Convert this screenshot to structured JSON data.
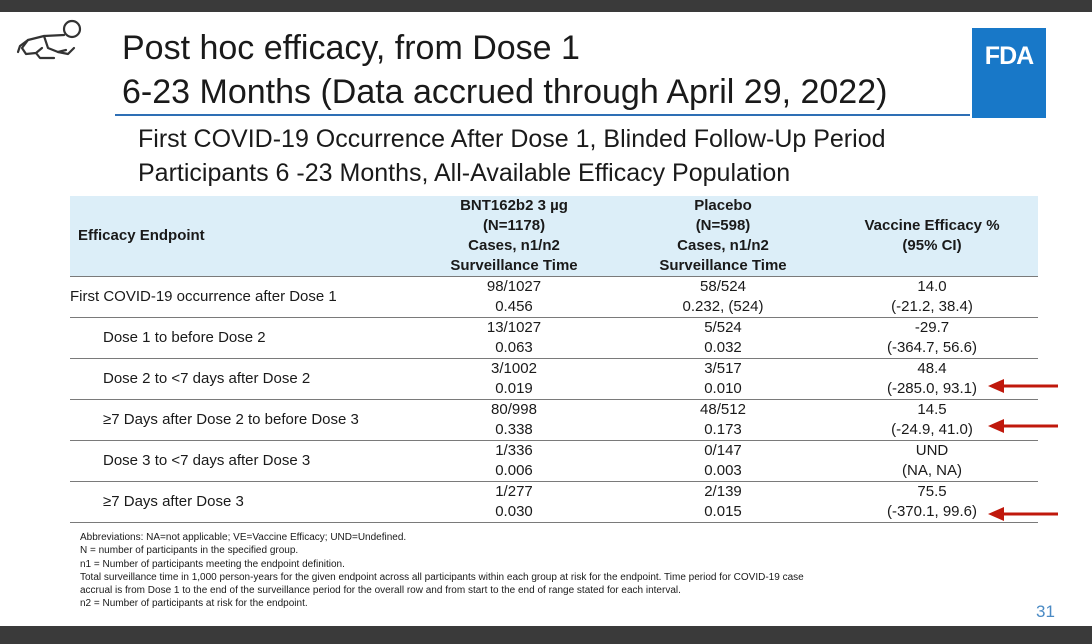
{
  "title": {
    "line1": "Post hoc efficacy, from Dose 1",
    "line2": "6-23 Months (Data accrued through April 29, 2022)"
  },
  "logo": {
    "text": "FDA",
    "color": "#1878c8"
  },
  "subtitle": {
    "line1": "First COVID-19 Occurrence After Dose 1, Blinded Follow-Up Period",
    "line2": "Participants 6 -23 Months, All-Available Efficacy Population"
  },
  "table": {
    "headers": {
      "endpoint": "Efficacy Endpoint",
      "vaccine": [
        "BNT162b2 3 µg",
        "(N=1178)",
        "Cases, n1/n2",
        "Surveillance Time"
      ],
      "placebo": [
        "Placebo",
        "(N=598)",
        "Cases, n1/n2",
        "Surveillance Time"
      ],
      "efficacy": [
        "Vaccine Efficacy %",
        "(95% CI)"
      ]
    },
    "rows": [
      {
        "endpoint": "First COVID-19 occurrence after Dose 1",
        "vaccine_cases": "98/1027",
        "vaccine_time": "0.456",
        "placebo_cases": "58/524",
        "placebo_time": "0.232, (524)",
        "ve": "14.0",
        "ci": "(-21.2, 38.4)"
      },
      {
        "endpoint": "Dose 1 to before Dose 2",
        "vaccine_cases": "13/1027",
        "vaccine_time": "0.063",
        "placebo_cases": "5/524",
        "placebo_time": "0.032",
        "ve": "-29.7",
        "ci": "(-364.7, 56.6)"
      },
      {
        "endpoint": "Dose 2 to <7 days after Dose 2",
        "vaccine_cases": "3/1002",
        "vaccine_time": "0.019",
        "placebo_cases": "3/517",
        "placebo_time": "0.010",
        "ve": "48.4",
        "ci": "(-285.0, 93.1)"
      },
      {
        "endpoint": "≥7 Days after Dose 2 to before Dose 3",
        "vaccine_cases": "80/998",
        "vaccine_time": "0.338",
        "placebo_cases": "48/512",
        "placebo_time": "0.173",
        "ve": "14.5",
        "ci": "(-24.9, 41.0)"
      },
      {
        "endpoint": "Dose 3 to <7 days after Dose 3",
        "vaccine_cases": "1/336",
        "vaccine_time": "0.006",
        "placebo_cases": "0/147",
        "placebo_time": "0.003",
        "ve": "UND",
        "ci": "(NA, NA)"
      },
      {
        "endpoint": "≥7 Days after Dose 3",
        "vaccine_cases": "1/277",
        "vaccine_time": "0.030",
        "placebo_cases": "2/139",
        "placebo_time": "0.015",
        "ve": "75.5",
        "ci": "(-370.1, 99.6)"
      }
    ]
  },
  "footnotes": [
    "Abbreviations: NA=not applicable; VE=Vaccine Efficacy; UND=Undefined.",
    "N = number of participants in the specified group.",
    "n1 = Number of participants meeting the endpoint definition.",
    "Total surveillance time in 1,000 person-years for the given endpoint across all participants within each group at risk for the endpoint. Time period for COVID-19 case",
    "accrual is from Dose 1 to the end of the surveillance period for the overall row and from start to the end of range stated for each interval.",
    "n2 = Number of participants at risk for the endpoint."
  ],
  "page_number": "31",
  "colors": {
    "accent": "#2e6fb5",
    "header_bg": "#dceef8",
    "arrow": "#c0180c",
    "page_number": "#4a8ac4"
  }
}
